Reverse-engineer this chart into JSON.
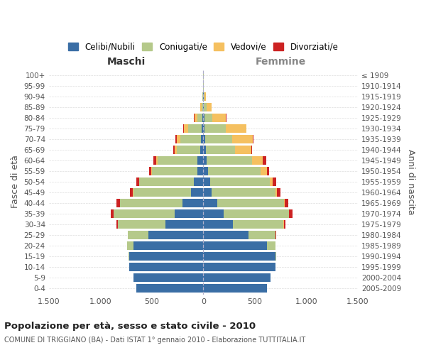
{
  "age_groups": [
    "0-4",
    "5-9",
    "10-14",
    "15-19",
    "20-24",
    "25-29",
    "30-34",
    "35-39",
    "40-44",
    "45-49",
    "50-54",
    "55-59",
    "60-64",
    "65-69",
    "70-74",
    "75-79",
    "80-84",
    "85-89",
    "90-94",
    "95-99",
    "100+"
  ],
  "birth_years": [
    "2005-2009",
    "2000-2004",
    "1995-1999",
    "1990-1994",
    "1985-1989",
    "1980-1984",
    "1975-1979",
    "1970-1974",
    "1965-1969",
    "1960-1964",
    "1955-1959",
    "1950-1954",
    "1945-1949",
    "1940-1944",
    "1935-1939",
    "1930-1934",
    "1925-1929",
    "1920-1924",
    "1915-1919",
    "1910-1914",
    "≤ 1909"
  ],
  "males": {
    "celibi": [
      650,
      680,
      720,
      720,
      680,
      530,
      370,
      280,
      200,
      120,
      90,
      60,
      55,
      30,
      25,
      15,
      8,
      3,
      2,
      1,
      1
    ],
    "coniugati": [
      0,
      0,
      2,
      5,
      60,
      200,
      460,
      590,
      610,
      560,
      530,
      440,
      390,
      230,
      200,
      130,
      50,
      15,
      5,
      2,
      1
    ],
    "vedovi": [
      0,
      0,
      0,
      0,
      0,
      0,
      0,
      1,
      1,
      2,
      3,
      5,
      10,
      20,
      35,
      45,
      30,
      10,
      3,
      1,
      0
    ],
    "divorziati": [
      0,
      0,
      0,
      0,
      2,
      5,
      15,
      25,
      30,
      30,
      25,
      20,
      30,
      10,
      10,
      5,
      2,
      1,
      0,
      0,
      0
    ]
  },
  "females": {
    "nubili": [
      620,
      650,
      700,
      700,
      620,
      440,
      290,
      200,
      135,
      80,
      65,
      45,
      35,
      25,
      20,
      15,
      10,
      5,
      3,
      1,
      1
    ],
    "coniugate": [
      0,
      0,
      2,
      10,
      80,
      260,
      490,
      630,
      650,
      620,
      580,
      510,
      440,
      280,
      260,
      200,
      80,
      25,
      8,
      3,
      2
    ],
    "vedove": [
      0,
      0,
      0,
      0,
      0,
      1,
      1,
      3,
      5,
      15,
      30,
      60,
      100,
      160,
      200,
      200,
      130,
      50,
      15,
      3,
      1
    ],
    "divorziate": [
      0,
      0,
      0,
      0,
      2,
      5,
      15,
      30,
      35,
      35,
      35,
      25,
      35,
      10,
      10,
      5,
      3,
      2,
      0,
      0,
      0
    ]
  },
  "colors": {
    "celibi": "#3a6ea5",
    "coniugati": "#b5c98a",
    "vedovi": "#f5c060",
    "divorziati": "#cc2222"
  },
  "xlim": 1500,
  "tick_positions": [
    -1500,
    -1000,
    -500,
    0,
    500,
    1000,
    1500
  ],
  "tick_labels": [
    "1.500",
    "1.000",
    "500",
    "0",
    "500",
    "1.000",
    "1.500"
  ],
  "title": "Popolazione per età, sesso e stato civile - 2010",
  "subtitle": "COMUNE DI TRIGGIANO (BA) - Dati ISTAT 1° gennaio 2010 - Elaborazione TUTTITALIA.IT",
  "label_maschi": "Maschi",
  "label_femmine": "Femmine",
  "ylabel_left": "Fasce di età",
  "ylabel_right": "Anni di nascita",
  "legend_labels": [
    "Celibi/Nubili",
    "Coniugati/e",
    "Vedovi/e",
    "Divorziati/e"
  ]
}
